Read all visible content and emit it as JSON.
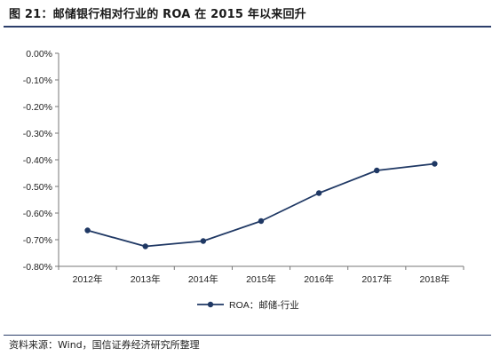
{
  "figure_title": "图 21：邮储银行相对行业的 ROA 在 2015 年以来回升",
  "source_note": "资料来源：Wind，国信证券经济研究所整理",
  "chart_data": {
    "type": "line",
    "categories": [
      "2012年",
      "2013年",
      "2014年",
      "2015年",
      "2016年",
      "2017年",
      "2018年"
    ],
    "series": [
      {
        "name": "ROA：邮储-行业",
        "values": [
          -0.665,
          -0.725,
          -0.705,
          -0.63,
          -0.525,
          -0.44,
          -0.415
        ]
      }
    ],
    "y_ticks": [
      0.0,
      -0.1,
      -0.2,
      -0.3,
      -0.4,
      -0.5,
      -0.6,
      -0.7,
      -0.8
    ],
    "y_tick_labels": [
      "0.00%",
      "-0.10%",
      "-0.20%",
      "-0.30%",
      "-0.40%",
      "-0.50%",
      "-0.60%",
      "-0.70%",
      "-0.80%"
    ],
    "ylim": [
      -0.8,
      0.0
    ],
    "grid": false,
    "legend_position": "bottom-center",
    "line_color": "#1f3864"
  }
}
